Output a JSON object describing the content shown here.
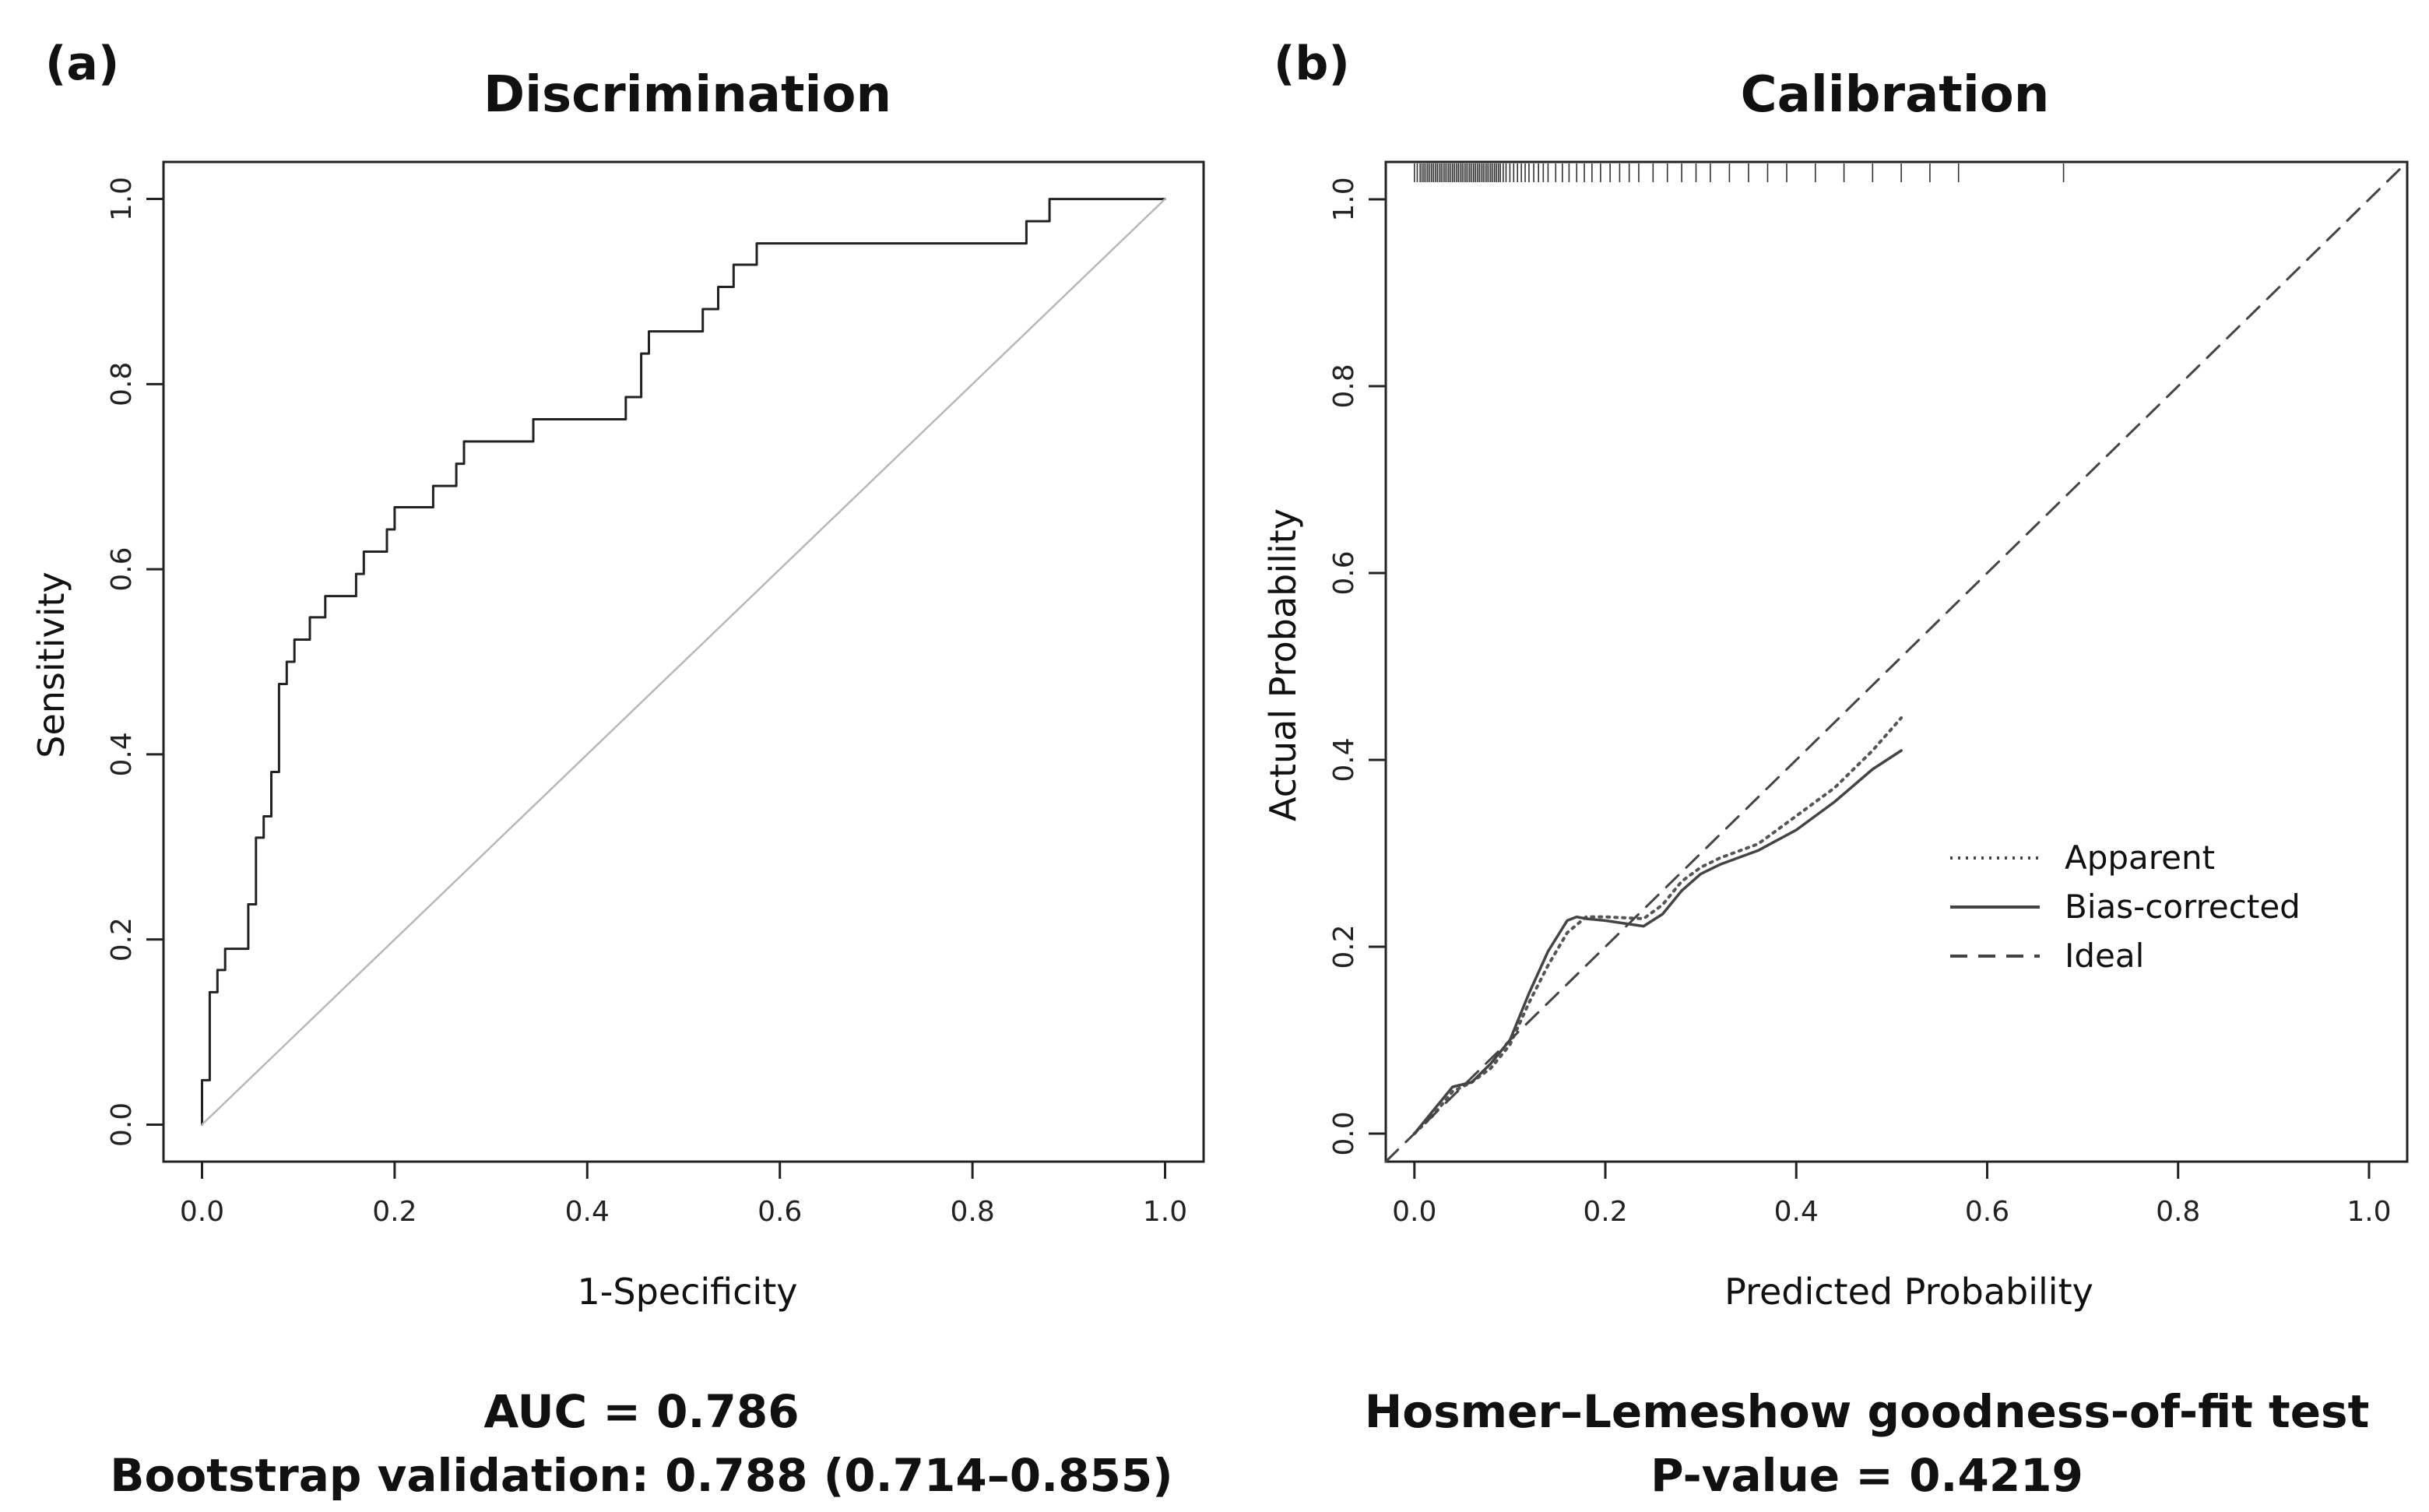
{
  "chart_data": [
    {
      "panel": "(a)",
      "type": "line",
      "title": "Discrimination",
      "xlabel": "1-Specificity",
      "ylabel": "Sensitivity",
      "xlim": [
        0,
        1
      ],
      "ylim": [
        0,
        1
      ],
      "xticks": [
        "0.0",
        "0.2",
        "0.4",
        "0.6",
        "0.8",
        "1.0"
      ],
      "yticks": [
        "0.0",
        "0.2",
        "0.4",
        "0.6",
        "0.8",
        "1.0"
      ],
      "series": [
        {
          "name": "ROC curve",
          "step": true,
          "x": [
            0.0,
            0.0,
            0.008,
            0.008,
            0.016,
            0.016,
            0.024,
            0.024,
            0.032,
            0.032,
            0.048,
            0.048,
            0.056,
            0.056,
            0.064,
            0.064,
            0.072,
            0.072,
            0.08,
            0.08,
            0.084,
            0.084,
            0.088,
            0.088,
            0.096,
            0.096,
            0.104,
            0.104,
            0.112,
            0.112,
            0.128,
            0.128,
            0.16,
            0.16,
            0.168,
            0.168,
            0.184,
            0.184,
            0.192,
            0.192,
            0.2,
            0.2,
            0.24,
            0.24,
            0.264,
            0.264,
            0.272,
            0.272,
            0.344,
            0.344,
            0.44,
            0.44,
            0.456,
            0.456,
            0.464,
            0.464,
            0.52,
            0.52,
            0.528,
            0.528,
            0.536,
            0.536,
            0.552,
            0.552,
            0.576,
            0.576,
            0.856,
            0.856,
            0.88,
            0.88,
            1.0
          ],
          "y": [
            0.0,
            0.048,
            0.048,
            0.143,
            0.143,
            0.167,
            0.167,
            0.19,
            0.19,
            0.19,
            0.19,
            0.238,
            0.238,
            0.31,
            0.31,
            0.333,
            0.333,
            0.381,
            0.381,
            0.476,
            0.476,
            0.476,
            0.476,
            0.5,
            0.5,
            0.524,
            0.524,
            0.524,
            0.524,
            0.548,
            0.548,
            0.571,
            0.571,
            0.595,
            0.595,
            0.619,
            0.619,
            0.619,
            0.619,
            0.643,
            0.643,
            0.667,
            0.667,
            0.69,
            0.69,
            0.714,
            0.714,
            0.738,
            0.738,
            0.762,
            0.762,
            0.786,
            0.786,
            0.833,
            0.833,
            0.857,
            0.857,
            0.881,
            0.881,
            0.881,
            0.881,
            0.905,
            0.905,
            0.929,
            0.929,
            0.952,
            0.952,
            0.976,
            0.976,
            1.0,
            1.0
          ]
        },
        {
          "name": "Reference line",
          "x": [
            0,
            1
          ],
          "y": [
            0,
            1
          ]
        }
      ],
      "annotations": [
        "AUC = 0.786",
        "Bootstrap validation: 0.788 (0.714–0.855)"
      ]
    },
    {
      "panel": "(b)",
      "type": "line",
      "title": "Calibration",
      "xlabel": "Predicted Probability",
      "ylabel": "Actual Probability",
      "xlim": [
        -0.03,
        1.04
      ],
      "ylim": [
        -0.03,
        1.04
      ],
      "xticks": [
        "0.0",
        "0.2",
        "0.4",
        "0.6",
        "0.8",
        "1.0"
      ],
      "yticks": [
        "0.0",
        "0.2",
        "0.4",
        "0.6",
        "0.8",
        "1.0"
      ],
      "legend": [
        "Apparent",
        "Bias-corrected",
        "Ideal"
      ],
      "legend_position": "center-right",
      "series": [
        {
          "name": "Apparent",
          "x": [
            0.0,
            0.02,
            0.04,
            0.06,
            0.08,
            0.1,
            0.12,
            0.14,
            0.16,
            0.18,
            0.2,
            0.22,
            0.24,
            0.26,
            0.28,
            0.3,
            0.32,
            0.36,
            0.4,
            0.44,
            0.48,
            0.51
          ],
          "y": [
            0.0,
            0.02,
            0.045,
            0.055,
            0.07,
            0.095,
            0.14,
            0.18,
            0.215,
            0.232,
            0.232,
            0.231,
            0.23,
            0.245,
            0.27,
            0.285,
            0.295,
            0.31,
            0.34,
            0.37,
            0.41,
            0.445
          ]
        },
        {
          "name": "Bias-corrected",
          "x": [
            0.0,
            0.02,
            0.04,
            0.06,
            0.08,
            0.1,
            0.12,
            0.14,
            0.16,
            0.17,
            0.18,
            0.2,
            0.22,
            0.24,
            0.26,
            0.28,
            0.3,
            0.32,
            0.36,
            0.4,
            0.44,
            0.48,
            0.51
          ],
          "y": [
            0.0,
            0.025,
            0.05,
            0.055,
            0.075,
            0.1,
            0.15,
            0.195,
            0.228,
            0.232,
            0.23,
            0.228,
            0.225,
            0.222,
            0.235,
            0.26,
            0.278,
            0.288,
            0.303,
            0.325,
            0.355,
            0.39,
            0.41
          ]
        },
        {
          "name": "Ideal",
          "x": [
            -0.03,
            1.04
          ],
          "y": [
            -0.03,
            1.04
          ]
        }
      ],
      "rug": {
        "side": "top",
        "values": [
          0.0,
          0.003,
          0.006,
          0.008,
          0.01,
          0.012,
          0.014,
          0.016,
          0.018,
          0.02,
          0.022,
          0.024,
          0.026,
          0.028,
          0.03,
          0.032,
          0.034,
          0.036,
          0.038,
          0.04,
          0.042,
          0.044,
          0.046,
          0.048,
          0.05,
          0.052,
          0.054,
          0.056,
          0.058,
          0.06,
          0.062,
          0.064,
          0.066,
          0.068,
          0.07,
          0.072,
          0.074,
          0.076,
          0.078,
          0.08,
          0.082,
          0.084,
          0.086,
          0.088,
          0.09,
          0.093,
          0.096,
          0.1,
          0.104,
          0.108,
          0.112,
          0.116,
          0.12,
          0.125,
          0.13,
          0.135,
          0.14,
          0.148,
          0.155,
          0.162,
          0.17,
          0.178,
          0.186,
          0.195,
          0.205,
          0.215,
          0.225,
          0.235,
          0.25,
          0.265,
          0.28,
          0.295,
          0.31,
          0.33,
          0.35,
          0.37,
          0.39,
          0.42,
          0.45,
          0.48,
          0.51,
          0.54,
          0.57,
          0.68
        ]
      },
      "annotations": [
        "Hosmer–Lemeshow goodness-of-fit test",
        "P-value = 0.4219"
      ]
    }
  ],
  "panels": {
    "a": {
      "letter": "(a)",
      "title": "Discrimination",
      "xlabel": "1-Specificity",
      "ylabel": "Sensitivity",
      "caption_line1": "AUC = 0.786",
      "caption_line2": "Bootstrap validation: 0.788 (0.714–0.855)"
    },
    "b": {
      "letter": "(b)",
      "title": "Calibration",
      "xlabel": "Predicted Probability",
      "ylabel": "Actual Probability",
      "caption_line1": "Hosmer–Lemeshow goodness-of-fit test",
      "caption_line2": "P-value = 0.4219",
      "legend": [
        "Apparent",
        "Bias-corrected",
        "Ideal"
      ]
    }
  },
  "colors": {
    "curve": "#222222",
    "reference": "#b8b8b8",
    "ideal": "#444444",
    "axis": "#222222"
  }
}
